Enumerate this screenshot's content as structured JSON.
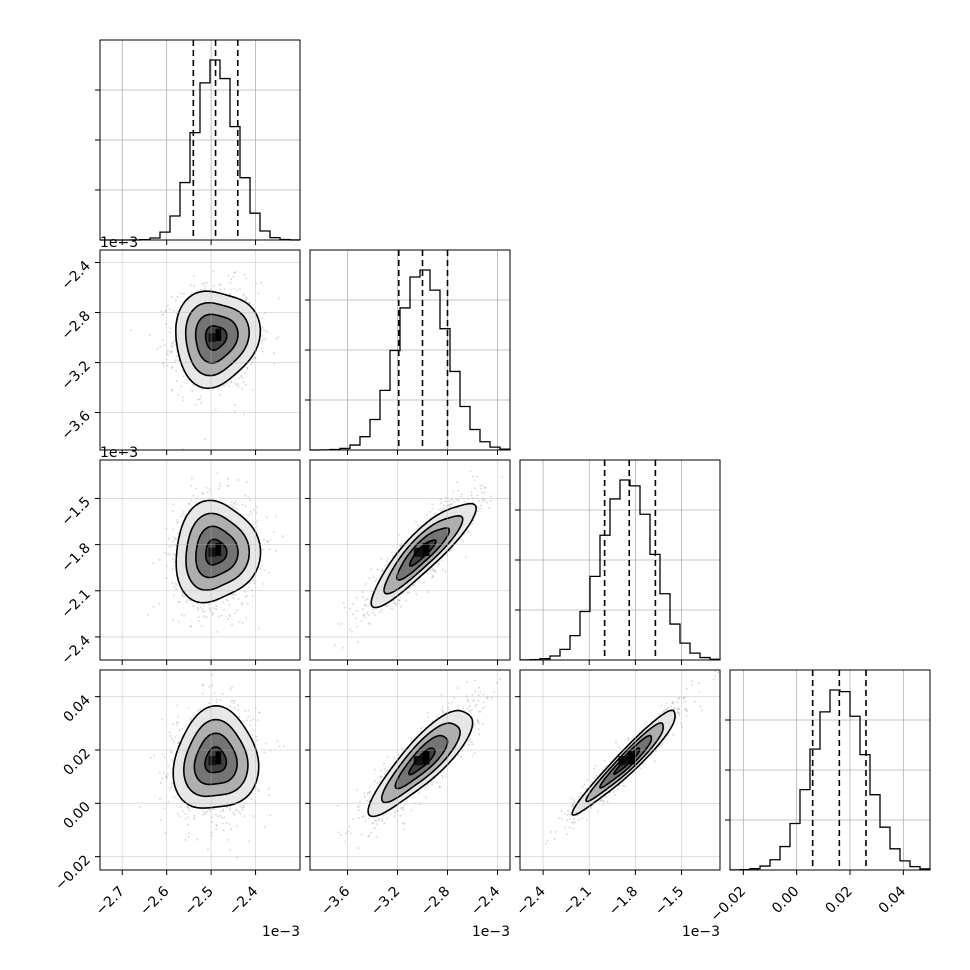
{
  "chart_data": {
    "type": "corner",
    "grid": true,
    "parameters": [
      {
        "index": 0,
        "range": [
          -2.75,
          -2.3
        ],
        "ticks": [
          -2.7,
          -2.6,
          -2.5,
          -2.4
        ],
        "tick_labels": [
          "−2.7",
          "−2.6",
          "−2.5",
          "−2.4"
        ],
        "offset_label": "1e−3",
        "mean": -2.49,
        "sd": 0.045,
        "quantiles": [
          -2.54,
          -2.49,
          -2.44
        ]
      },
      {
        "index": 1,
        "range": [
          -3.9,
          -2.3
        ],
        "ticks": [
          -3.6,
          -3.2,
          -2.8,
          -2.4
        ],
        "tick_labels": [
          "−3.6",
          "−3.2",
          "−2.8",
          "−2.4"
        ],
        "offset_label": "1e−3",
        "mean": -3.0,
        "sd": 0.2,
        "quantiles": [
          -3.19,
          -3.0,
          -2.8
        ]
      },
      {
        "index": 2,
        "range": [
          -2.55,
          -1.25
        ],
        "ticks": [
          -2.4,
          -2.1,
          -1.8,
          -1.5
        ],
        "tick_labels": [
          "−2.4",
          "−2.1",
          "−1.8",
          "−1.5"
        ],
        "offset_label": "1e−3",
        "mean": -1.85,
        "sd": 0.17,
        "quantiles": [
          -2.0,
          -1.84,
          -1.67
        ]
      },
      {
        "index": 3,
        "range": [
          -0.025,
          0.05
        ],
        "ticks": [
          -0.02,
          0.0,
          0.02,
          0.04
        ],
        "tick_labels": [
          "−0.02",
          "0.00",
          "0.02",
          "0.04"
        ],
        "offset_label": "",
        "mean": 0.016,
        "sd": 0.01,
        "quantiles": [
          0.006,
          0.016,
          0.026
        ]
      }
    ],
    "pairs": [
      {
        "row": 1,
        "col": 0,
        "rho": 0.05,
        "contour_rx": [
          0.032,
          0.062,
          0.095,
          0.13
        ],
        "contour_ry": [
          0.012,
          0.032,
          0.05,
          0.07
        ]
      },
      {
        "row": 2,
        "col": 0,
        "rho": 0.05
      },
      {
        "row": 2,
        "col": 1,
        "rho": 0.88
      },
      {
        "row": 3,
        "col": 0,
        "rho": 0.05
      },
      {
        "row": 3,
        "col": 1,
        "rho": 0.85
      },
      {
        "row": 3,
        "col": 2,
        "rho": 0.96
      }
    ]
  }
}
